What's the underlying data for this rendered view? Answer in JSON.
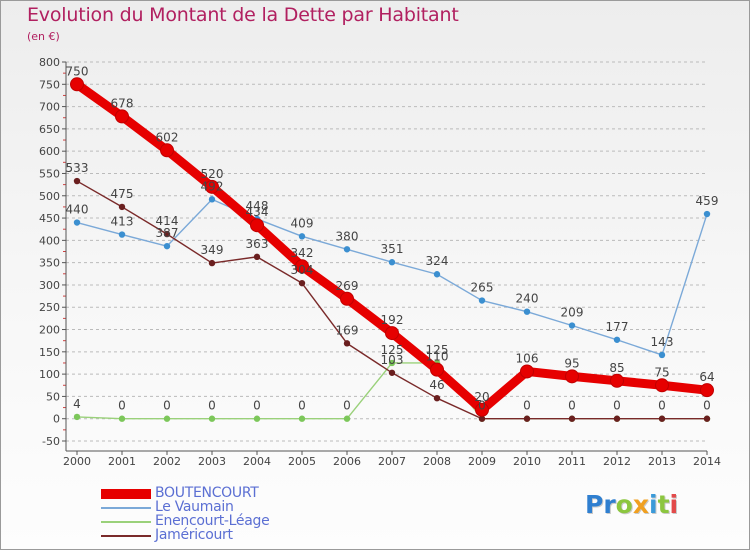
{
  "title": "Evolution du Montant de la Dette par Habitant",
  "unit_label": "(en €)",
  "logo": {
    "letters": [
      {
        "ch": "P",
        "color": "#2f7fd0"
      },
      {
        "ch": "r",
        "color": "#2f7fd0"
      },
      {
        "ch": "o",
        "color": "#8cc63f"
      },
      {
        "ch": "x",
        "color": "#f0a020"
      },
      {
        "ch": "i",
        "color": "#3a9ad9"
      },
      {
        "ch": "t",
        "color": "#8cc63f"
      },
      {
        "ch": "i",
        "color": "#e24a4a"
      }
    ]
  },
  "colors": {
    "axis": "#555555",
    "grid": "#bbbbbb",
    "label": "#444444"
  },
  "chart_data": {
    "type": "line",
    "title": "Evolution du Montant de la Dette par Habitant",
    "ylabel": "(en €)",
    "xlabel": "",
    "ylim": [
      -50,
      800
    ],
    "y_ticks": [
      -50,
      0,
      50,
      100,
      150,
      200,
      250,
      300,
      350,
      400,
      450,
      500,
      550,
      600,
      650,
      700,
      750,
      800
    ],
    "x": [
      "2000",
      "2001",
      "2002",
      "2003",
      "2004",
      "2005",
      "2006",
      "2007",
      "2008",
      "2009",
      "2010",
      "2011",
      "2012",
      "2013",
      "2014"
    ],
    "grid": "horizontal dashed",
    "legend_position": "bottom-left",
    "series": [
      {
        "name": "BOUTENCOURT",
        "color": "#e60000",
        "marker_color": "#e60000",
        "style": "thick",
        "values": [
          750,
          678,
          602,
          520,
          434,
          342,
          269,
          192,
          110,
          20,
          106,
          95,
          85,
          75,
          64
        ],
        "labels": [
          "750",
          "678",
          "602",
          "520",
          "434",
          "342",
          "269",
          "192",
          "110",
          "20",
          "106",
          "95",
          "85",
          "75",
          "64"
        ]
      },
      {
        "name": "Le Vaumain",
        "color": "#7ba9d8",
        "marker_color": "#3b8fd0",
        "style": "thin",
        "values": [
          440,
          413,
          387,
          492,
          448,
          409,
          380,
          351,
          324,
          265,
          240,
          209,
          177,
          143,
          459
        ],
        "labels": [
          "440",
          "413",
          "387",
          "492",
          "448",
          "409",
          "380",
          "351",
          "324",
          "265",
          "240",
          "209",
          "177",
          "143",
          "459"
        ]
      },
      {
        "name": "Enencourt-Léage",
        "color": "#9ad17a",
        "marker_color": "#7cc75a",
        "style": "thin",
        "values": [
          4,
          0,
          0,
          0,
          0,
          0,
          0,
          125,
          125,
          0,
          0,
          0,
          0,
          0,
          0
        ],
        "labels": [
          "4",
          "0",
          "0",
          "0",
          "0",
          "0",
          "0",
          "125",
          "125",
          "",
          "",
          "",
          "",
          "",
          ""
        ]
      },
      {
        "name": "Jaméricourt",
        "color": "#7a2a2a",
        "marker_color": "#6a1f1f",
        "style": "thin",
        "values": [
          533,
          475,
          414,
          349,
          363,
          304,
          169,
          103,
          46,
          0,
          0,
          0,
          0,
          0,
          0
        ],
        "labels": [
          "533",
          "475",
          "414",
          "349",
          "363",
          "304",
          "169",
          "103",
          "46",
          "0",
          "0",
          "0",
          "0",
          "0",
          "0"
        ]
      }
    ]
  }
}
